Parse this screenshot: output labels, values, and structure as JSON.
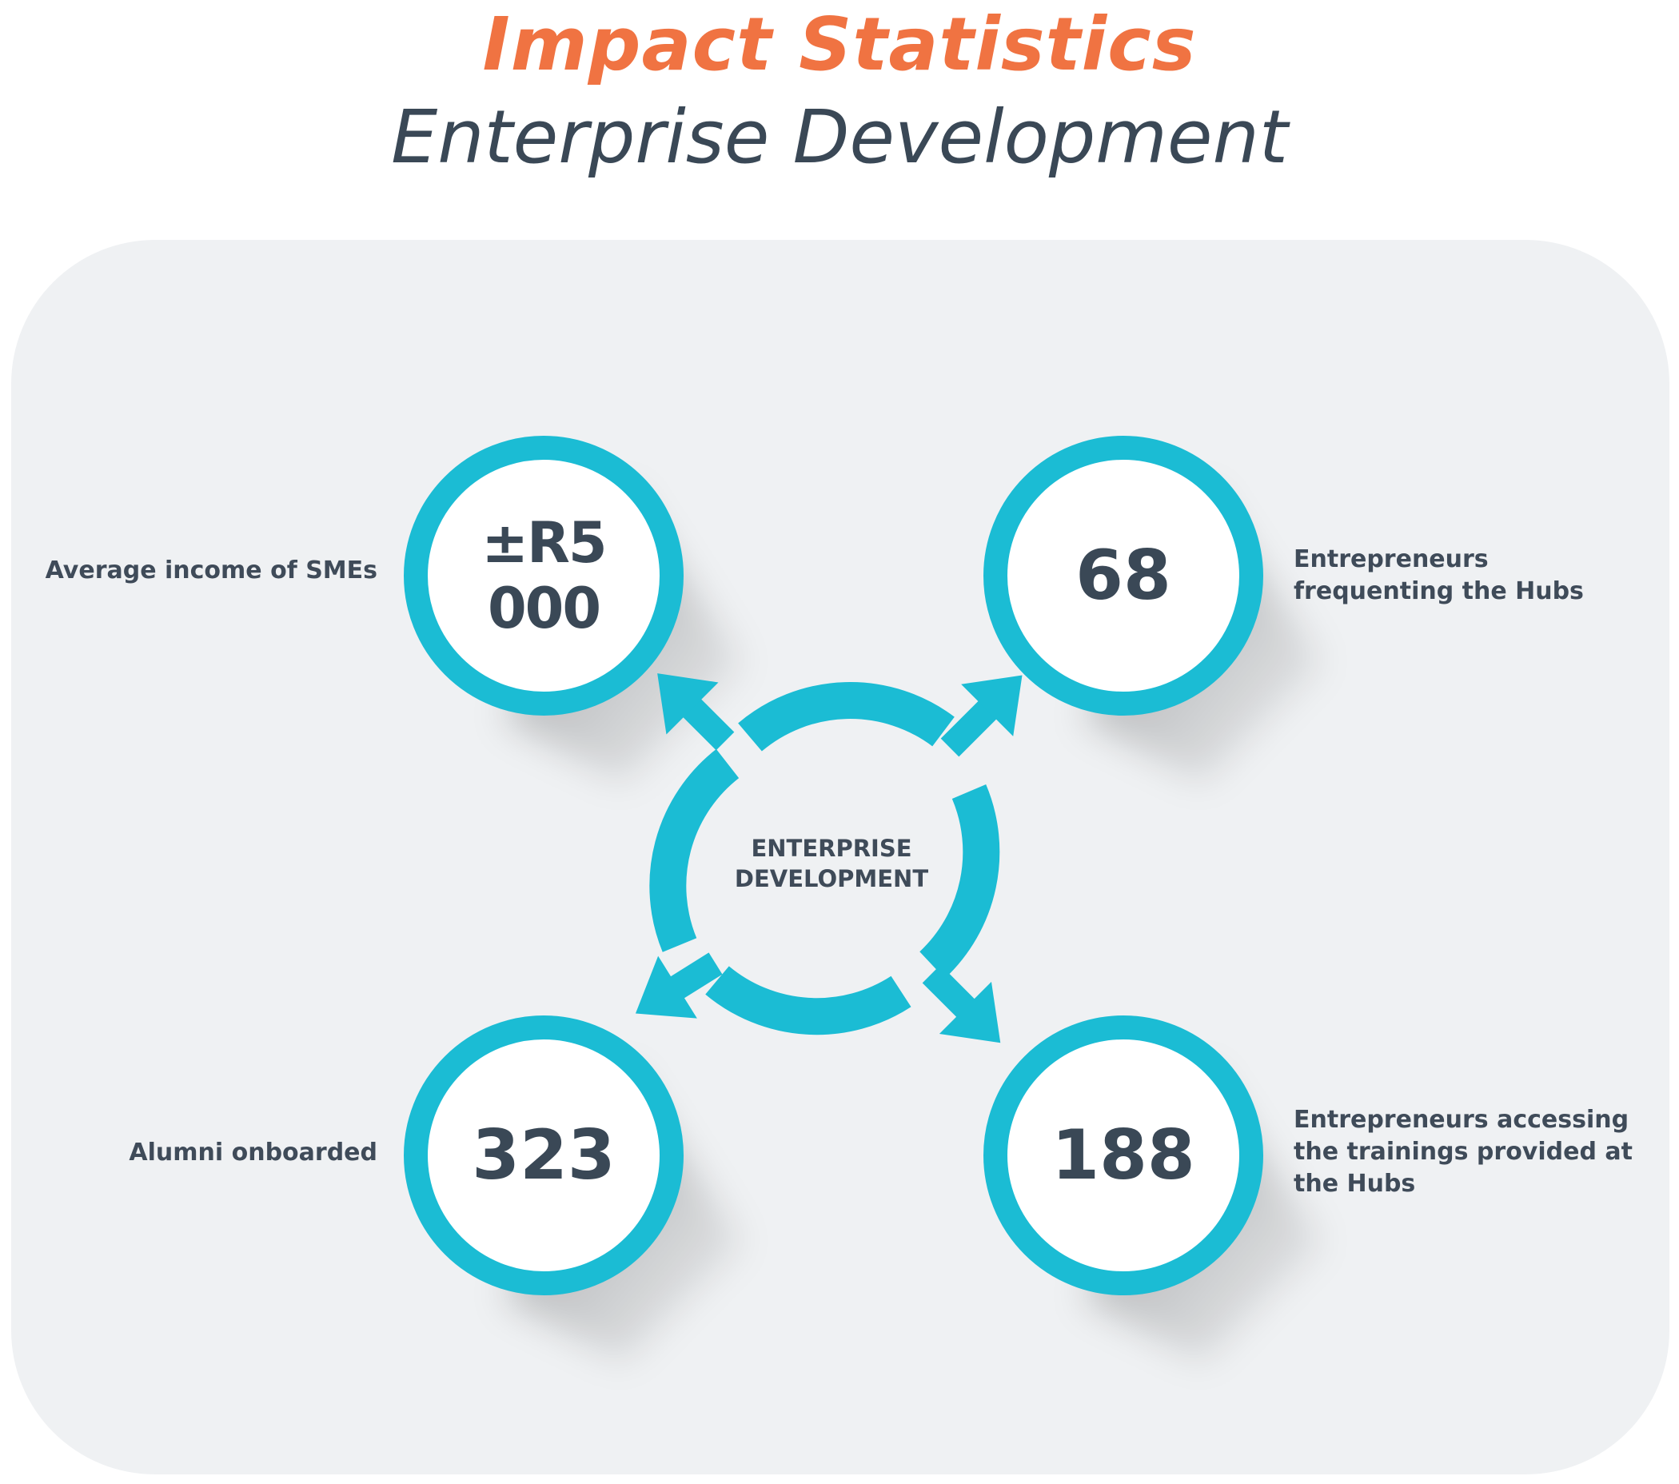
{
  "header": {
    "title": "Impact Statistics",
    "subtitle": "Enterprise Development"
  },
  "center": {
    "line1": "ENTERPRISE",
    "line2": "DEVELOPMENT"
  },
  "stats": [
    {
      "value": "±R5 000",
      "label": [
        "Average income of SMEs"
      ]
    },
    {
      "value": "68",
      "label": [
        "Entrepreneurs",
        "frequenting the Hubs"
      ]
    },
    {
      "value": "323",
      "label": [
        "Alumni onboarded"
      ]
    },
    {
      "value": "188",
      "label": [
        "Entrepreneurs accessing",
        "the trainings provided at",
        "the Hubs"
      ]
    }
  ],
  "colors": {
    "accent_orange": "#f07342",
    "ring_cyan": "#1bbcd4",
    "text_dark": "#3a4856",
    "panel_bg": "#eff1f3"
  }
}
